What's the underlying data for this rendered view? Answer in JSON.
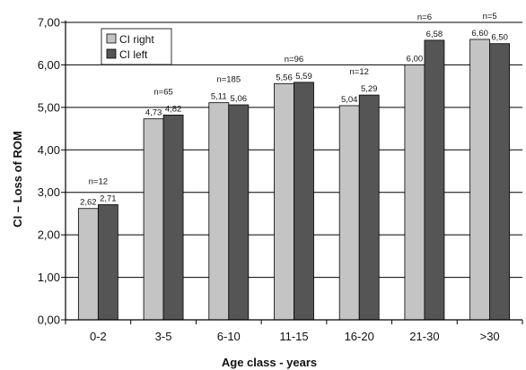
{
  "chart_data": {
    "type": "bar",
    "categories": [
      "0-2",
      "3-5",
      "6-10",
      "11-15",
      "16-20",
      "21-30",
      ">30"
    ],
    "series": [
      {
        "name": "CI right",
        "color": "#c4c4c4",
        "values": [
          2.62,
          4.73,
          5.11,
          5.56,
          5.04,
          6.0,
          6.6
        ],
        "labels": [
          "2,62",
          "4,73",
          "5,11",
          "5,56",
          "5,04",
          "6,00",
          "6,60"
        ]
      },
      {
        "name": "CI left",
        "color": "#555555",
        "values": [
          2.71,
          4.82,
          5.06,
          5.59,
          5.29,
          6.58,
          6.5
        ],
        "labels": [
          "2,71",
          "4,82",
          "5,06",
          "5,59",
          "5,29",
          "6,58",
          "6,50"
        ]
      }
    ],
    "n_labels": [
      "n=12",
      "n=65",
      "n=185",
      "n=96",
      "n=12",
      "n=6",
      "n=5"
    ],
    "xlabel": "Age class - years",
    "ylabel": "CI – Loss of ROM",
    "ylim": [
      0,
      7
    ],
    "yticks": [
      0,
      1,
      2,
      3,
      4,
      5,
      6,
      7
    ],
    "ytick_labels": [
      "0,00",
      "1,00",
      "2,00",
      "3,00",
      "4,00",
      "5,00",
      "6,00",
      "7,00"
    ],
    "grid": true,
    "legend_position": "top-left"
  }
}
